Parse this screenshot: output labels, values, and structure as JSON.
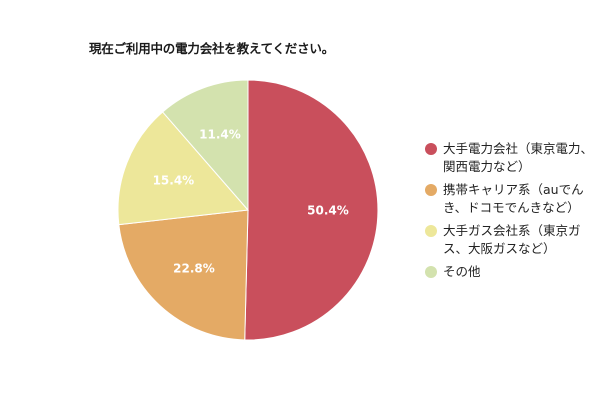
{
  "chart_data": {
    "type": "pie",
    "title": "現在ご利用中の電力会社を教えてください。",
    "categories": [
      "大手電力会社（東京電力、関西電力など）",
      "携帯キャリア系（auでんき、ドコモでんきなど）",
      "大手ガス会社系（東京ガス、大阪ガスなど）",
      "その他"
    ],
    "values": [
      50.4,
      22.8,
      15.4,
      11.4
    ],
    "value_labels": [
      "50.4%",
      "22.8%",
      "15.4%",
      "11.4%"
    ],
    "colors": [
      "#c94f5c",
      "#e4aa65",
      "#ede79a",
      "#d3e2ae"
    ],
    "start_angle": "12 o'clock",
    "direction": "clockwise",
    "legend_position": "right"
  }
}
